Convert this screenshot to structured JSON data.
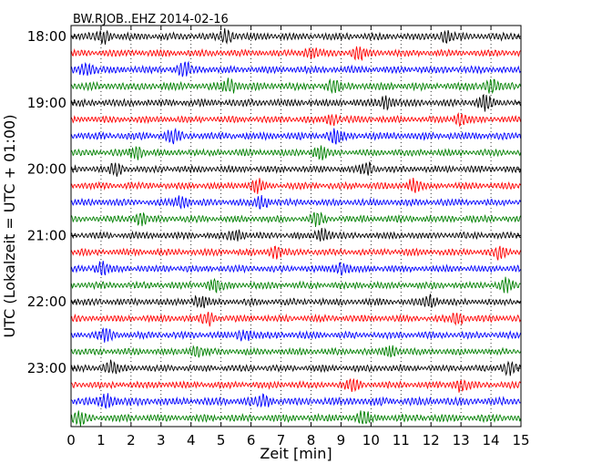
{
  "chart_data": {
    "type": "line",
    "title": "BW.RJOB..EHZ 2014-02-16",
    "xlabel": "Zeit  [min]",
    "ylabel": "UTC (Lokalzeit = UTC + 01:00)",
    "xlim": [
      0,
      15
    ],
    "x_ticks": [
      "0",
      "1",
      "2",
      "3",
      "4",
      "5",
      "6",
      "7",
      "8",
      "9",
      "10",
      "11",
      "12",
      "13",
      "14",
      "15"
    ],
    "y_ticks": [
      "18:00",
      "19:00",
      "20:00",
      "21:00",
      "22:00",
      "23:00"
    ],
    "trace_colors": [
      "#000000",
      "#ff0000",
      "#0000ff",
      "#008000"
    ],
    "grid": "vertical dotted at each minute",
    "traces": [
      {
        "start": "18:00",
        "color": "#000000",
        "amplitude": 0.3,
        "bursts": [
          1.1,
          5.2,
          12.5
        ]
      },
      {
        "start": "18:15",
        "color": "#ff0000",
        "amplitude": 0.28,
        "bursts": [
          8.0,
          9.6
        ]
      },
      {
        "start": "18:30",
        "color": "#0000ff",
        "amplitude": 0.3,
        "bursts": [
          0.5,
          3.8
        ]
      },
      {
        "start": "18:45",
        "color": "#008000",
        "amplitude": 0.32,
        "bursts": [
          5.3,
          8.8,
          14.0
        ]
      },
      {
        "start": "19:00",
        "color": "#000000",
        "amplitude": 0.3,
        "bursts": [
          10.5,
          13.8
        ]
      },
      {
        "start": "19:15",
        "color": "#ff0000",
        "amplitude": 0.28,
        "bursts": [
          8.7,
          13.0
        ]
      },
      {
        "start": "19:30",
        "color": "#0000ff",
        "amplitude": 0.3,
        "bursts": [
          3.4,
          8.8
        ]
      },
      {
        "start": "19:45",
        "color": "#008000",
        "amplitude": 0.28,
        "bursts": [
          2.2,
          8.3
        ]
      },
      {
        "start": "20:00",
        "color": "#000000",
        "amplitude": 0.28,
        "bursts": [
          1.5,
          9.9
        ]
      },
      {
        "start": "20:15",
        "color": "#ff0000",
        "amplitude": 0.28,
        "bursts": [
          6.2,
          11.4
        ]
      },
      {
        "start": "20:30",
        "color": "#0000ff",
        "amplitude": 0.28,
        "bursts": [
          3.7,
          6.4
        ]
      },
      {
        "start": "20:45",
        "color": "#008000",
        "amplitude": 0.28,
        "bursts": [
          2.3,
          8.2
        ]
      },
      {
        "start": "21:00",
        "color": "#000000",
        "amplitude": 0.28,
        "bursts": [
          5.5,
          8.4
        ]
      },
      {
        "start": "21:15",
        "color": "#ff0000",
        "amplitude": 0.28,
        "bursts": [
          6.8,
          14.3
        ]
      },
      {
        "start": "21:30",
        "color": "#0000ff",
        "amplitude": 0.28,
        "bursts": [
          1.0,
          9.0
        ]
      },
      {
        "start": "21:45",
        "color": "#008000",
        "amplitude": 0.28,
        "bursts": [
          4.8,
          14.5
        ]
      },
      {
        "start": "22:00",
        "color": "#000000",
        "amplitude": 0.28,
        "bursts": [
          4.3,
          12.0
        ]
      },
      {
        "start": "22:15",
        "color": "#ff0000",
        "amplitude": 0.28,
        "bursts": [
          4.6,
          12.9
        ]
      },
      {
        "start": "22:30",
        "color": "#0000ff",
        "amplitude": 0.28,
        "bursts": [
          1.2,
          5.8
        ]
      },
      {
        "start": "22:45",
        "color": "#008000",
        "amplitude": 0.28,
        "bursts": [
          4.2,
          10.7
        ]
      },
      {
        "start": "23:00",
        "color": "#000000",
        "amplitude": 0.28,
        "bursts": [
          1.3,
          14.6
        ]
      },
      {
        "start": "23:15",
        "color": "#ff0000",
        "amplitude": 0.28,
        "bursts": [
          9.4,
          13.0
        ]
      },
      {
        "start": "23:30",
        "color": "#0000ff",
        "amplitude": 0.32,
        "bursts": [
          1.2,
          6.4
        ]
      },
      {
        "start": "23:45",
        "color": "#008000",
        "amplitude": 0.3,
        "bursts": [
          0.3,
          9.8
        ]
      }
    ]
  }
}
